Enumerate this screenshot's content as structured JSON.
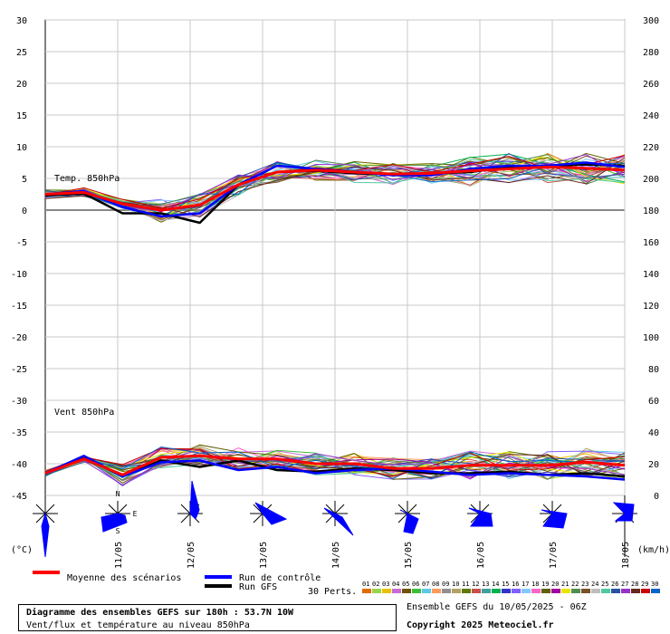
{
  "chart_data": {
    "type": "line",
    "subtitle": "Vent/flux et température au niveau 850hPa",
    "x": [
      "11/05",
      "12/05",
      "13/05",
      "14/05",
      "15/05",
      "16/05",
      "17/05",
      "18/05"
    ],
    "units_left": "(°C)",
    "units_right": "(km/h)",
    "ylim_left": [
      -45,
      30
    ],
    "left_ticks": [
      30,
      25,
      20,
      15,
      10,
      5,
      0,
      -5,
      -10,
      -15,
      -20,
      -25,
      -30,
      -35,
      -40,
      -45
    ],
    "right_ticks": [
      300,
      280,
      260,
      240,
      220,
      200,
      180,
      160,
      140,
      120,
      100,
      80,
      60,
      40,
      20,
      0
    ],
    "grid": true,
    "panels": {
      "temp_label": "Temp. 850hPa",
      "wind_label": "Vent 850hPa"
    },
    "temp_series": {
      "mean": {
        "name": "Moyenne des scénarios",
        "values": [
          2.5,
          2.8,
          1.0,
          0,
          0.8,
          4,
          6,
          6.3,
          6,
          5.7,
          5.8,
          6.2,
          6.5,
          6.8,
          6.6,
          6.3
        ]
      },
      "control": {
        "name": "Run de contrôle",
        "values": [
          2.5,
          3.0,
          0.5,
          -1,
          -0.5,
          4,
          7,
          6.5,
          6,
          5.5,
          5.5,
          6.5,
          7,
          7,
          7.5,
          6.8
        ]
      },
      "gfs": {
        "name": "Run GFS",
        "values": [
          2.3,
          2.6,
          -0.5,
          -0.5,
          -2,
          4,
          6,
          6.2,
          5.8,
          5.6,
          5.8,
          6,
          6.8,
          7,
          7.2,
          7
        ]
      }
    },
    "wind_series": {
      "mean": {
        "name": "Moyenne des scénarios",
        "values": [
          14,
          23,
          13,
          24,
          25,
          23,
          23,
          20,
          20,
          17,
          17,
          19,
          19,
          19,
          21,
          19
        ]
      },
      "control": {
        "name": "Run de contrôle",
        "values": [
          14,
          25,
          12,
          21,
          22,
          16,
          18,
          14,
          16,
          17,
          15,
          13,
          14,
          13,
          12,
          10
        ]
      },
      "gfs": {
        "name": "Run GFS",
        "values": [
          14,
          24,
          12,
          22,
          18,
          22,
          16,
          15,
          17,
          16,
          14,
          14,
          15,
          13,
          14,
          12
        ]
      }
    },
    "legend": {
      "mean_label": "Moyenne des scénarios",
      "control_label": "Run de contrôle",
      "gfs_label": "Run GFS",
      "perts_label": "30 Perts.",
      "perts": [
        "01",
        "02",
        "03",
        "04",
        "05",
        "06",
        "07",
        "08",
        "09",
        "10",
        "11",
        "12",
        "13",
        "14",
        "15",
        "16",
        "17",
        "18",
        "19",
        "20",
        "21",
        "22",
        "23",
        "24",
        "25",
        "26",
        "27",
        "28",
        "29",
        "30"
      ]
    },
    "wind_rose_dirs": [
      "N",
      "E",
      "S"
    ]
  },
  "colors": {
    "mean": "#ff0000",
    "control": "#0000ff",
    "gfs": "#000000",
    "rose": "#0000ff",
    "perts": [
      "#e06c00",
      "#9ad34a",
      "#e6c200",
      "#c86ad6",
      "#6e5300",
      "#3cbe3c",
      "#5ec8e6",
      "#ff9a5a",
      "#909090",
      "#b4a064",
      "#5e7a00",
      "#c8504a",
      "#40a0a0",
      "#00b050",
      "#3232c8",
      "#8060ff",
      "#80c8ff",
      "#ff64c8",
      "#606000",
      "#a000a0",
      "#e6e600",
      "#508c50",
      "#785028",
      "#bebebe",
      "#50c8a0",
      "#2850a0",
      "#9632c8",
      "#64281e",
      "#c80000",
      "#0064c8"
    ]
  },
  "info": {
    "title": "Diagramme des ensembles GEFS sur 180h : 53.7N 10W",
    "run": "Ensemble GEFS du 10/05/2025 - 06Z",
    "copyright": "Copyright 2025 Meteociel.fr"
  }
}
